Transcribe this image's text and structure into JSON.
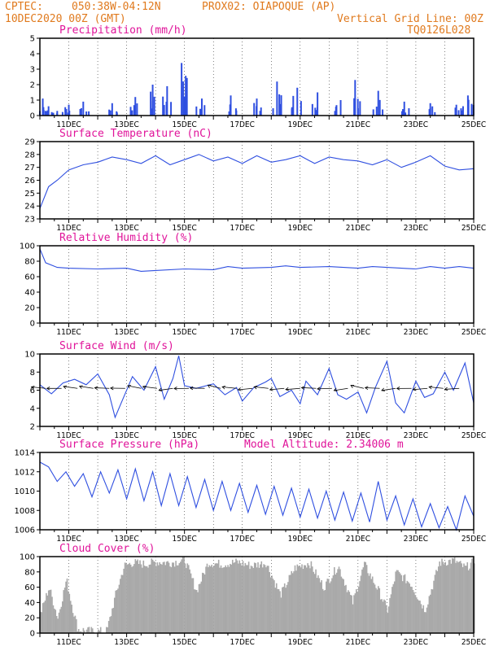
{
  "header": {
    "line1_left": "CPTEC:",
    "line1_coords": "050:38W-04:12N",
    "line1_station": "PROX02: OIAPOQUE (AP)",
    "line2_date": "10DEC2020 00Z (GMT)",
    "line2_grid": "Vertical Grid Line: 00Z",
    "line3_code": "TQ0126L028"
  },
  "colors": {
    "header": "#e07a1e",
    "title": "#e0149a",
    "series": "#2f4fe0",
    "cloud": "#a9a9a9"
  },
  "x_tick_labels": [
    "11DEC",
    "13DEC",
    "15DEC",
    "17DEC",
    "19DEC",
    "21DEC",
    "23DEC",
    "25DEC"
  ],
  "chart_data": [
    {
      "type": "bar",
      "title": "Precipitation (mm/h)",
      "ylim": [
        0,
        5
      ],
      "yticks": [
        0,
        1,
        2,
        3,
        4,
        5
      ],
      "x_range_days": [
        10,
        25
      ],
      "values_sample": [
        {
          "day": 10.1,
          "value": 1.1
        },
        {
          "day": 10.3,
          "value": 0.6
        },
        {
          "day": 10.6,
          "value": 0.3
        },
        {
          "day": 11.0,
          "value": 0.7
        },
        {
          "day": 11.5,
          "value": 0.9
        },
        {
          "day": 12.5,
          "value": 0.8
        },
        {
          "day": 13.3,
          "value": 1.2
        },
        {
          "day": 13.9,
          "value": 2.0
        },
        {
          "day": 14.4,
          "value": 1.9
        },
        {
          "day": 14.9,
          "value": 3.4
        },
        {
          "day": 15.6,
          "value": 1.1
        },
        {
          "day": 16.6,
          "value": 1.3
        },
        {
          "day": 17.5,
          "value": 1.1
        },
        {
          "day": 18.2,
          "value": 2.2
        },
        {
          "day": 18.9,
          "value": 1.8
        },
        {
          "day": 19.6,
          "value": 1.5
        },
        {
          "day": 20.4,
          "value": 1.0
        },
        {
          "day": 20.9,
          "value": 2.3
        },
        {
          "day": 21.7,
          "value": 1.6
        },
        {
          "day": 22.6,
          "value": 0.9
        },
        {
          "day": 23.5,
          "value": 0.8
        },
        {
          "day": 24.4,
          "value": 0.7
        },
        {
          "day": 24.8,
          "value": 1.3
        }
      ]
    },
    {
      "type": "line",
      "title": "Surface Temperature (nC)",
      "ylim": [
        23,
        29
      ],
      "yticks": [
        23,
        24,
        25,
        26,
        27,
        28,
        29
      ],
      "points": [
        [
          10.0,
          23.8
        ],
        [
          10.3,
          25.5
        ],
        [
          10.6,
          26.0
        ],
        [
          11.0,
          26.8
        ],
        [
          11.5,
          27.2
        ],
        [
          12.0,
          27.4
        ],
        [
          12.5,
          27.8
        ],
        [
          13.0,
          27.6
        ],
        [
          13.5,
          27.3
        ],
        [
          14.0,
          27.9
        ],
        [
          14.5,
          27.2
        ],
        [
          15.0,
          27.6
        ],
        [
          15.5,
          28.0
        ],
        [
          16.0,
          27.5
        ],
        [
          16.5,
          27.8
        ],
        [
          17.0,
          27.3
        ],
        [
          17.5,
          27.9
        ],
        [
          18.0,
          27.4
        ],
        [
          18.5,
          27.6
        ],
        [
          19.0,
          27.9
        ],
        [
          19.5,
          27.3
        ],
        [
          20.0,
          27.8
        ],
        [
          20.5,
          27.6
        ],
        [
          21.0,
          27.5
        ],
        [
          21.5,
          27.2
        ],
        [
          22.0,
          27.6
        ],
        [
          22.5,
          27.0
        ],
        [
          23.0,
          27.4
        ],
        [
          23.5,
          27.9
        ],
        [
          24.0,
          27.1
        ],
        [
          24.5,
          26.8
        ],
        [
          25.0,
          26.9
        ]
      ]
    },
    {
      "type": "line",
      "title": "Relative Humidity (%)",
      "ylim": [
        0,
        100
      ],
      "yticks": [
        0,
        20,
        40,
        60,
        80,
        100
      ],
      "points": [
        [
          10.0,
          96
        ],
        [
          10.2,
          78
        ],
        [
          10.6,
          72
        ],
        [
          11.0,
          71
        ],
        [
          12.0,
          70
        ],
        [
          13.0,
          71
        ],
        [
          13.5,
          67
        ],
        [
          14.0,
          68
        ],
        [
          15.0,
          70
        ],
        [
          16.0,
          69
        ],
        [
          16.5,
          73
        ],
        [
          17.0,
          71
        ],
        [
          18.0,
          72
        ],
        [
          18.5,
          74
        ],
        [
          19.0,
          72
        ],
        [
          20.0,
          73
        ],
        [
          21.0,
          71
        ],
        [
          21.5,
          73
        ],
        [
          22.0,
          72
        ],
        [
          23.0,
          70
        ],
        [
          23.5,
          73
        ],
        [
          24.0,
          71
        ],
        [
          24.5,
          73
        ],
        [
          25.0,
          71
        ]
      ]
    },
    {
      "type": "line",
      "title": "Surface Wind (m/s)",
      "ylim": [
        2,
        10
      ],
      "yticks": [
        2,
        4,
        6,
        8,
        10
      ],
      "points": [
        [
          10.0,
          6.6
        ],
        [
          10.4,
          5.6
        ],
        [
          10.8,
          6.8
        ],
        [
          11.2,
          7.2
        ],
        [
          11.6,
          6.6
        ],
        [
          12.0,
          7.8
        ],
        [
          12.4,
          5.5
        ],
        [
          12.6,
          3.0
        ],
        [
          12.8,
          4.5
        ],
        [
          13.2,
          7.5
        ],
        [
          13.6,
          6.0
        ],
        [
          14.0,
          8.6
        ],
        [
          14.3,
          5.0
        ],
        [
          14.6,
          7.3
        ],
        [
          14.8,
          9.8
        ],
        [
          15.0,
          6.5
        ],
        [
          15.4,
          6.2
        ],
        [
          16.0,
          6.7
        ],
        [
          16.4,
          5.5
        ],
        [
          16.8,
          6.3
        ],
        [
          17.0,
          4.8
        ],
        [
          17.4,
          6.3
        ],
        [
          17.8,
          6.9
        ],
        [
          18.0,
          7.3
        ],
        [
          18.3,
          5.3
        ],
        [
          18.7,
          6.0
        ],
        [
          19.0,
          4.5
        ],
        [
          19.2,
          7.0
        ],
        [
          19.6,
          5.5
        ],
        [
          20.0,
          8.4
        ],
        [
          20.3,
          5.5
        ],
        [
          20.6,
          5.0
        ],
        [
          21.0,
          5.8
        ],
        [
          21.3,
          3.5
        ],
        [
          21.6,
          6.3
        ],
        [
          22.0,
          9.2
        ],
        [
          22.3,
          4.6
        ],
        [
          22.6,
          3.5
        ],
        [
          23.0,
          7.0
        ],
        [
          23.3,
          5.2
        ],
        [
          23.6,
          5.6
        ],
        [
          24.0,
          8.0
        ],
        [
          24.3,
          6.0
        ],
        [
          24.7,
          9.0
        ],
        [
          25.0,
          4.6
        ]
      ]
    },
    {
      "type": "line",
      "title": "Surface Pressure (hPa)",
      "annotation": "Model Altitude: 2.34006 m",
      "ylim": [
        1006,
        1014
      ],
      "yticks": [
        1006,
        1008,
        1010,
        1012,
        1014
      ],
      "points": [
        [
          10.0,
          1013.0
        ],
        [
          10.3,
          1012.5
        ],
        [
          10.6,
          1011.0
        ],
        [
          10.9,
          1012.0
        ],
        [
          11.2,
          1010.5
        ],
        [
          11.5,
          1011.8
        ],
        [
          11.8,
          1009.4
        ],
        [
          12.1,
          1012.0
        ],
        [
          12.4,
          1009.8
        ],
        [
          12.7,
          1012.2
        ],
        [
          13.0,
          1009.2
        ],
        [
          13.3,
          1012.3
        ],
        [
          13.6,
          1009.0
        ],
        [
          13.9,
          1012.0
        ],
        [
          14.2,
          1008.5
        ],
        [
          14.5,
          1011.8
        ],
        [
          14.8,
          1008.5
        ],
        [
          15.1,
          1011.5
        ],
        [
          15.4,
          1008.3
        ],
        [
          15.7,
          1011.2
        ],
        [
          16.0,
          1008.0
        ],
        [
          16.3,
          1011.0
        ],
        [
          16.6,
          1008.0
        ],
        [
          16.9,
          1010.8
        ],
        [
          17.2,
          1007.8
        ],
        [
          17.5,
          1010.6
        ],
        [
          17.8,
          1007.6
        ],
        [
          18.1,
          1010.5
        ],
        [
          18.4,
          1007.5
        ],
        [
          18.7,
          1010.3
        ],
        [
          19.0,
          1007.3
        ],
        [
          19.3,
          1010.2
        ],
        [
          19.6,
          1007.2
        ],
        [
          19.9,
          1010.0
        ],
        [
          20.2,
          1007.0
        ],
        [
          20.5,
          1009.9
        ],
        [
          20.8,
          1006.9
        ],
        [
          21.1,
          1009.8
        ],
        [
          21.4,
          1006.8
        ],
        [
          21.7,
          1011.0
        ],
        [
          22.0,
          1007.0
        ],
        [
          22.3,
          1009.5
        ],
        [
          22.6,
          1006.5
        ],
        [
          22.9,
          1009.2
        ],
        [
          23.2,
          1006.3
        ],
        [
          23.5,
          1008.7
        ],
        [
          23.8,
          1006.2
        ],
        [
          24.1,
          1008.4
        ],
        [
          24.4,
          1006.0
        ],
        [
          24.7,
          1009.5
        ],
        [
          25.0,
          1007.4
        ]
      ]
    },
    {
      "type": "area",
      "title": "Cloud Cover (%)",
      "ylim": [
        0,
        100
      ],
      "yticks": [
        0,
        20,
        40,
        60,
        80,
        100
      ],
      "points": [
        [
          10.0,
          25
        ],
        [
          10.3,
          60
        ],
        [
          10.6,
          20
        ],
        [
          10.9,
          70
        ],
        [
          11.1,
          35
        ],
        [
          11.3,
          5
        ],
        [
          11.6,
          3
        ],
        [
          12.0,
          2
        ],
        [
          12.3,
          3
        ],
        [
          12.6,
          50
        ],
        [
          12.9,
          88
        ],
        [
          13.2,
          92
        ],
        [
          13.6,
          90
        ],
        [
          14.0,
          93
        ],
        [
          14.5,
          92
        ],
        [
          15.0,
          95
        ],
        [
          15.4,
          55
        ],
        [
          15.8,
          92
        ],
        [
          16.3,
          90
        ],
        [
          16.8,
          93
        ],
        [
          17.3,
          88
        ],
        [
          17.8,
          92
        ],
        [
          18.3,
          50
        ],
        [
          18.8,
          85
        ],
        [
          19.3,
          92
        ],
        [
          19.8,
          60
        ],
        [
          20.3,
          88
        ],
        [
          20.8,
          40
        ],
        [
          21.2,
          90
        ],
        [
          21.7,
          55
        ],
        [
          22.0,
          30
        ],
        [
          22.3,
          80
        ],
        [
          22.8,
          65
        ],
        [
          23.3,
          30
        ],
        [
          23.8,
          92
        ],
        [
          24.3,
          95
        ],
        [
          24.7,
          85
        ],
        [
          25.0,
          94
        ]
      ]
    }
  ]
}
